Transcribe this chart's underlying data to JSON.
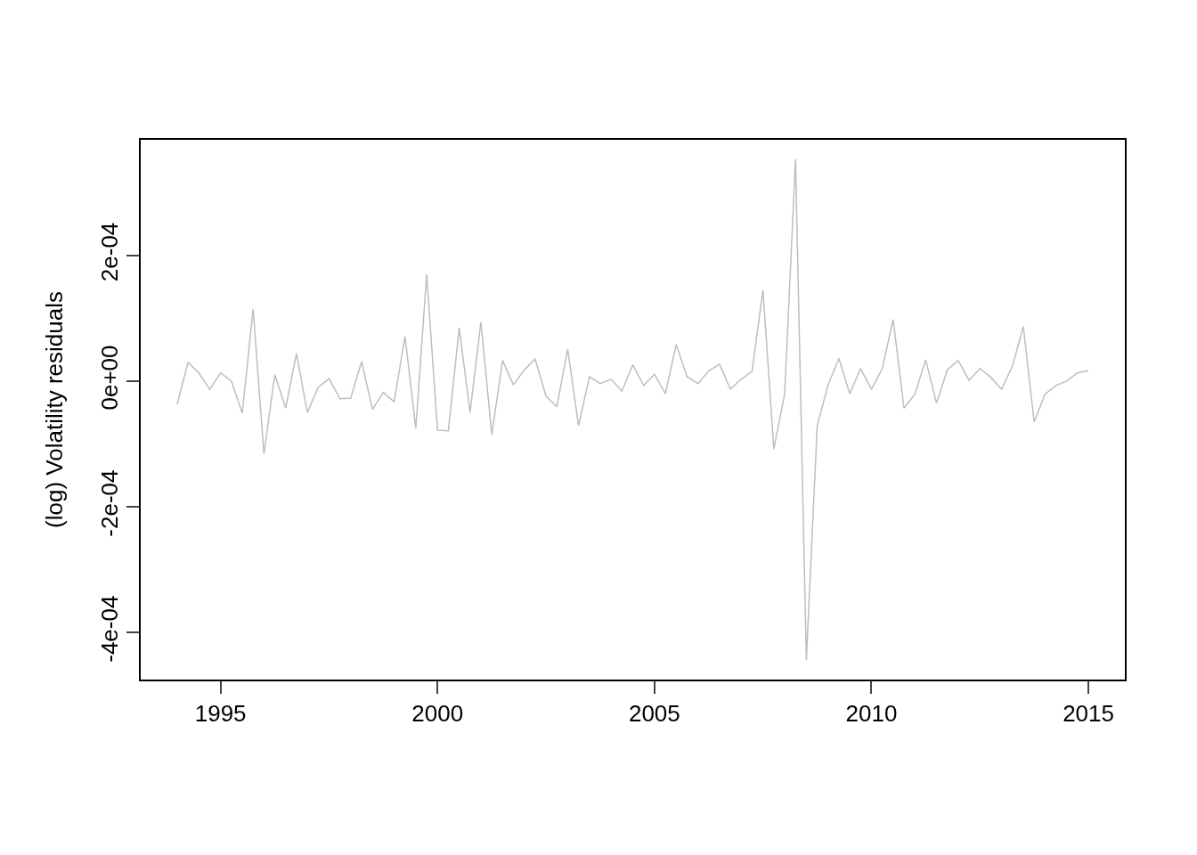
{
  "chart_data": {
    "type": "line",
    "ylabel": "(log) Volatility residuals",
    "x": [
      1994,
      1994.25,
      1994.5,
      1994.75,
      1995,
      1995.25,
      1995.5,
      1995.75,
      1996,
      1996.25,
      1996.5,
      1996.75,
      1997,
      1997.25,
      1997.5,
      1997.75,
      1998,
      1998.25,
      1998.5,
      1998.75,
      1999,
      1999.25,
      1999.5,
      1999.75,
      2000,
      2000.25,
      2000.5,
      2000.75,
      2001,
      2001.25,
      2001.5,
      2001.75,
      2002,
      2002.25,
      2002.5,
      2002.75,
      2003,
      2003.25,
      2003.5,
      2003.75,
      2004,
      2004.25,
      2004.5,
      2004.75,
      2005,
      2005.25,
      2005.5,
      2005.75,
      2006,
      2006.25,
      2006.5,
      2006.75,
      2007,
      2007.25,
      2007.5,
      2007.75,
      2008,
      2008.25,
      2008.5,
      2008.75,
      2009,
      2009.25,
      2009.5,
      2009.75,
      2010,
      2010.25,
      2010.5,
      2010.75,
      2011,
      2011.25,
      2011.5,
      2011.75,
      2012,
      2012.25,
      2012.5,
      2012.75,
      2013,
      2013.25,
      2013.5,
      2013.75,
      2014,
      2014.25,
      2014.5,
      2014.75,
      2015
    ],
    "series": [
      {
        "color": "#bebebe",
        "values": [
          -3.7e-05,
          3e-05,
          1.3e-05,
          -1.3e-05,
          1.3e-05,
          0,
          -5.1e-05,
          0.000115,
          -0.000116,
          1e-05,
          -4.3e-05,
          4.4e-05,
          -5e-05,
          -1e-05,
          4e-06,
          -2.8e-05,
          -2.7e-05,
          3.1e-05,
          -4.5e-05,
          -1.8e-05,
          -3.3e-05,
          7.1e-05,
          -7.5e-05,
          0.00017,
          -7.8e-05,
          -7.9e-05,
          8.5e-05,
          -5e-05,
          9.4e-05,
          -8.5e-05,
          3.3e-05,
          -6e-06,
          1.8e-05,
          3.5e-05,
          -2.4e-05,
          -4.1e-05,
          5.1e-05,
          -7.1e-05,
          7e-06,
          -4e-06,
          3e-06,
          -1.6e-05,
          2.6e-05,
          -7e-06,
          1.1e-05,
          -2e-05,
          5.8e-05,
          7e-06,
          -4e-06,
          1.6e-05,
          2.7e-05,
          -1.3e-05,
          3e-06,
          1.6e-05,
          0.000145,
          -0.000108,
          -2.1e-05,
          0.000353,
          -0.000444,
          -7.1e-05,
          -6e-06,
          3.6e-05,
          -2e-05,
          2e-05,
          -1.3e-05,
          2e-05,
          9.8e-05,
          -4.3e-05,
          -2.1e-05,
          3.4e-05,
          -3.5e-05,
          1.8e-05,
          3.3e-05,
          1e-06,
          2e-05,
          6e-06,
          -1.3e-05,
          2.4e-05,
          8.7e-05,
          -6.5e-05,
          -2.1e-05,
          -7e-06,
          0,
          1.3e-05,
          1.7e-05
        ]
      }
    ],
    "xlim": [
      1993.16,
      2015.84
    ],
    "xticks": [
      1995,
      2000,
      2005,
      2010,
      2015
    ],
    "ylim": [
      -0.000475,
      0.000384
    ],
    "yticks": [
      {
        "value": -0.0004,
        "label": "-4e-04"
      },
      {
        "value": -0.0002,
        "label": "-2e-04"
      },
      {
        "value": 0,
        "label": "0e+00"
      },
      {
        "value": 0.0002,
        "label": "2e-04"
      }
    ]
  }
}
